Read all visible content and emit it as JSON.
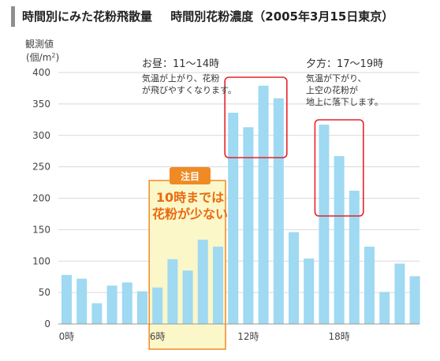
{
  "title": "時間別にみた花粉飛散量",
  "subtitle": "時間別花粉濃度（2005年3月15日東京）",
  "colors": {
    "bar": "#9fd9f2",
    "grid": "#d9d9d9",
    "highlight_fill": "#fbf7c9",
    "highlight_border": "#f08a24",
    "badge": "#f08a24",
    "callout_box": "#e3242b"
  },
  "chart_data": {
    "type": "bar",
    "ylabel": [
      "観測値",
      "(個/m²)"
    ],
    "ylim": [
      0,
      400
    ],
    "yticks": [
      0,
      50,
      100,
      150,
      200,
      250,
      300,
      350,
      400
    ],
    "grid": true,
    "hours": [
      0,
      1,
      2,
      3,
      4,
      5,
      6,
      7,
      8,
      9,
      10,
      11,
      12,
      13,
      14,
      15,
      16,
      17,
      18,
      19,
      20,
      21,
      22,
      23
    ],
    "values": [
      78,
      72,
      33,
      61,
      66,
      52,
      58,
      103,
      85,
      134,
      123,
      336,
      313,
      379,
      359,
      146,
      104,
      317,
      267,
      212,
      123,
      51,
      96,
      76
    ],
    "x_tick_labels": [
      {
        "hour": 0,
        "label": "0時"
      },
      {
        "hour": 6,
        "label": "6時"
      },
      {
        "hour": 12,
        "label": "12時"
      },
      {
        "hour": 18,
        "label": "18時"
      }
    ]
  },
  "annotations": {
    "midday": {
      "title": "お昼：11〜14時",
      "lines": [
        "気温が上がり、花粉",
        "が飛びやすくなります。"
      ]
    },
    "evening": {
      "title": "夕方：17〜19時",
      "lines": [
        "気温が下がり、",
        "上空の花粉が",
        "地上に落下します。"
      ]
    },
    "focus": {
      "badge": "注目",
      "lines": [
        "10時までは",
        "花粉が少ない"
      ]
    }
  }
}
